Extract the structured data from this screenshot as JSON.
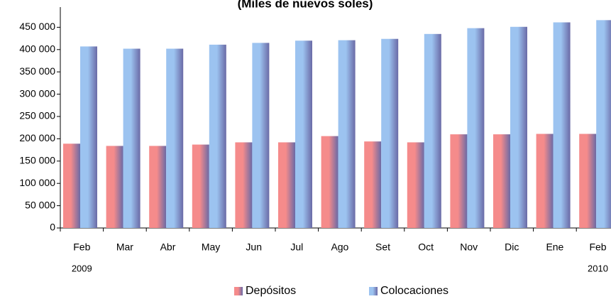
{
  "chart_data": {
    "type": "bar",
    "title": "(Miles de nuevos soles)",
    "categories": [
      "Feb",
      "Mar",
      "Abr",
      "May",
      "Jun",
      "Jul",
      "Ago",
      "Set",
      "Oct",
      "Nov",
      "Dic",
      "Ene",
      "Feb"
    ],
    "category_years": [
      "2009",
      null,
      null,
      null,
      null,
      null,
      null,
      null,
      null,
      null,
      null,
      null,
      "2010"
    ],
    "series": [
      {
        "name": "Depósitos",
        "color": "#f58b8b",
        "values": [
          189000,
          184000,
          184000,
          187000,
          192000,
          192000,
          206000,
          194000,
          192000,
          210000,
          210000,
          211000,
          211000
        ]
      },
      {
        "name": "Colocaciones",
        "color": "#9cc3f0",
        "values": [
          407000,
          402000,
          402000,
          411000,
          415000,
          420000,
          421000,
          424000,
          435000,
          448000,
          451000,
          461000,
          466000
        ]
      }
    ],
    "ylim": [
      0,
      500000
    ],
    "yticks": [
      {
        "value": 0,
        "label": "0"
      },
      {
        "value": 50000,
        "label": "50 000"
      },
      {
        "value": 100000,
        "label": "100 000"
      },
      {
        "value": 150000,
        "label": "150 000"
      },
      {
        "value": 200000,
        "label": "200 000"
      },
      {
        "value": 250000,
        "label": "250 000"
      },
      {
        "value": 300000,
        "label": "300 000"
      },
      {
        "value": 350000,
        "label": "350 000"
      },
      {
        "value": 400000,
        "label": "400 000"
      },
      {
        "value": 450000,
        "label": "450 000"
      }
    ],
    "grid": false,
    "legend": "bottom"
  }
}
